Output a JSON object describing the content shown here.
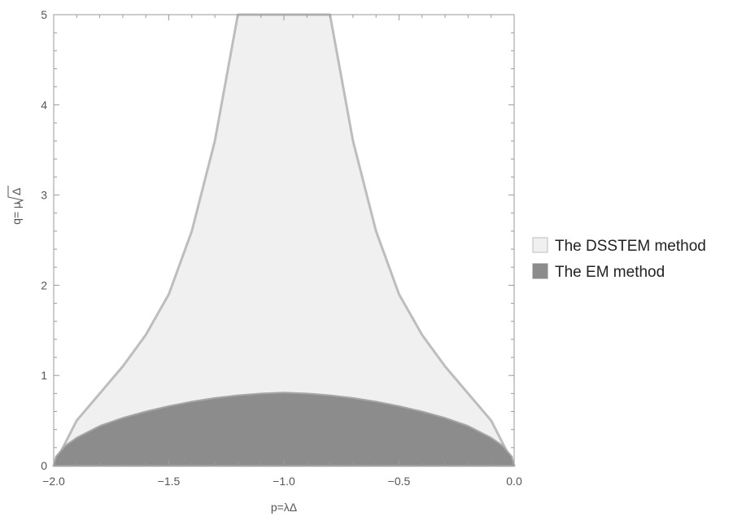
{
  "chart_data": {
    "type": "area",
    "xlabel": "p=λΔ",
    "ylabel_prefix": "q= μ ",
    "ylabel_radical": "Δ",
    "xlim": [
      -2.0,
      0.0
    ],
    "ylim": [
      0,
      5
    ],
    "x_ticks": [
      "-2.0",
      "-1.5",
      "-1.0",
      "-0.5",
      "0.0"
    ],
    "y_ticks": [
      "0",
      "1",
      "2",
      "3",
      "4",
      "5"
    ],
    "grid": false,
    "legend_position": "right",
    "series": [
      {
        "name": "The DSSTEM method",
        "color": "#f0f0f0",
        "edge_color": "#bdbdbd",
        "x": [
          -2.0,
          -1.9,
          -1.8,
          -1.7,
          -1.6,
          -1.5,
          -1.4,
          -1.3,
          -1.25,
          -1.2,
          -1.2,
          -0.8,
          -0.8,
          -0.75,
          -0.7,
          -0.6,
          -0.5,
          -0.4,
          -0.3,
          -0.2,
          -0.1,
          0.0
        ],
        "upper": [
          0.0,
          0.5,
          0.8,
          1.1,
          1.45,
          1.9,
          2.6,
          3.6,
          4.3,
          5.0,
          5.0,
          5.0,
          5.0,
          4.3,
          3.6,
          2.6,
          1.9,
          1.45,
          1.1,
          0.8,
          0.5,
          0.0
        ],
        "lower": [
          0.0,
          0.0,
          0.0,
          0.0,
          0.0,
          0.0,
          0.0,
          0.0,
          0.0,
          0.0,
          0.0,
          0.0,
          0.0,
          0.0,
          0.0,
          0.0,
          0.0,
          0.0,
          0.0,
          0.0,
          0.0,
          0.0
        ]
      },
      {
        "name": "The EM method",
        "color": "#8c8c8c",
        "edge_color": "#a6a6a6",
        "x": [
          -2.0,
          -1.99,
          -1.95,
          -1.9,
          -1.8,
          -1.7,
          -1.6,
          -1.5,
          -1.4,
          -1.3,
          -1.2,
          -1.1,
          -1.0,
          -0.9,
          -0.8,
          -0.7,
          -0.6,
          -0.5,
          -0.4,
          -0.3,
          -0.2,
          -0.1,
          -0.05,
          -0.01,
          0.0
        ],
        "upper": [
          0.0,
          0.1,
          0.22,
          0.31,
          0.44,
          0.53,
          0.6,
          0.66,
          0.71,
          0.75,
          0.78,
          0.8,
          0.81,
          0.8,
          0.78,
          0.75,
          0.71,
          0.66,
          0.6,
          0.53,
          0.44,
          0.31,
          0.22,
          0.1,
          0.0
        ],
        "lower": [
          0.0,
          0.0,
          0.0,
          0.0,
          0.0,
          0.0,
          0.0,
          0.0,
          0.0,
          0.0,
          0.0,
          0.0,
          0.0,
          0.0,
          0.0,
          0.0,
          0.0,
          0.0,
          0.0,
          0.0,
          0.0,
          0.0,
          0.0,
          0.0,
          0.0
        ]
      }
    ]
  }
}
